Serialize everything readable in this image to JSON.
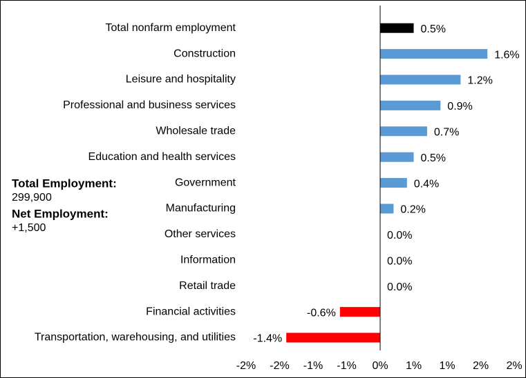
{
  "chart_data": {
    "type": "barh",
    "categories": [
      "Total nonfarm employment",
      "Construction",
      "Leisure and hospitality",
      "Professional and business services",
      "Wholesale trade",
      "Education and health services",
      "Government",
      "Manufacturing",
      "Other services",
      "Information",
      "Retail trade",
      "Financial activities",
      "Transportation, warehousing, and utilities"
    ],
    "values": [
      0.5,
      1.6,
      1.2,
      0.9,
      0.7,
      0.5,
      0.4,
      0.2,
      0.0,
      0.0,
      0.0,
      -0.6,
      -1.4
    ],
    "value_labels": [
      "0.5%",
      "1.6%",
      "1.2%",
      "0.9%",
      "0.7%",
      "0.5%",
      "0.4%",
      "0.2%",
      "0.0%",
      "0.0%",
      "0.0%",
      "-0.6%",
      "-1.4%"
    ],
    "colors": [
      "#000000",
      "#5b9bd5",
      "#5b9bd5",
      "#5b9bd5",
      "#5b9bd5",
      "#5b9bd5",
      "#5b9bd5",
      "#5b9bd5",
      "#5b9bd5",
      "#5b9bd5",
      "#5b9bd5",
      "#ff0000",
      "#ff0000"
    ],
    "xlim": [
      -2,
      2
    ],
    "xticks": [
      {
        "value": -2,
        "label": "-2%"
      },
      {
        "value": -1.5,
        "label": "-2%"
      },
      {
        "value": -1,
        "label": "-1%"
      },
      {
        "value": -0.5,
        "label": "-1%"
      },
      {
        "value": 0,
        "label": "0%"
      },
      {
        "value": 0.5,
        "label": "1%"
      },
      {
        "value": 1,
        "label": "1%"
      },
      {
        "value": 1.5,
        "label": "2%"
      },
      {
        "value": 2,
        "label": "2%"
      }
    ],
    "annotations": [
      {
        "heading": "Total Employment:",
        "text": "299,900"
      },
      {
        "heading": "Net Employment:",
        "text": "+1,500"
      }
    ]
  }
}
